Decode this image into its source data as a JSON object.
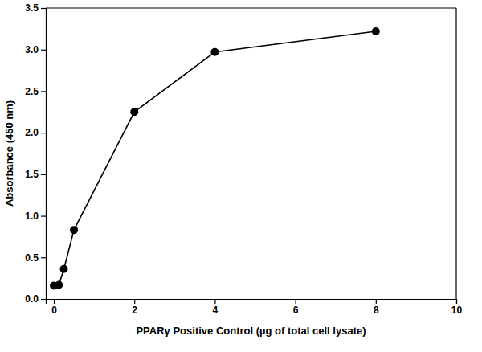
{
  "chart_data": {
    "type": "line",
    "x_label": "PPARγ Positive Control (µg of total cell lysate)",
    "y_label": "Absorbance (450 nm)",
    "x": [
      0,
      0.125,
      0.25,
      0.5,
      2,
      4,
      8
    ],
    "values": [
      0.16,
      0.17,
      0.36,
      0.83,
      2.25,
      2.97,
      3.22
    ],
    "color": "#000000",
    "marker": "circle",
    "line_style": "solid",
    "xlim": [
      -0.2,
      10
    ],
    "xticks": [
      0,
      2,
      4,
      6,
      8,
      10
    ],
    "ylim": [
      0,
      3.5
    ],
    "yticks": [
      {
        "value": 0,
        "label": "0.0"
      },
      0.5,
      {
        "value": 1,
        "label": "1.0"
      },
      1.5,
      {
        "value": 2,
        "label": "2.0"
      },
      2.5,
      {
        "value": 3,
        "label": "3.0"
      },
      3.5
    ],
    "grid": false
  }
}
